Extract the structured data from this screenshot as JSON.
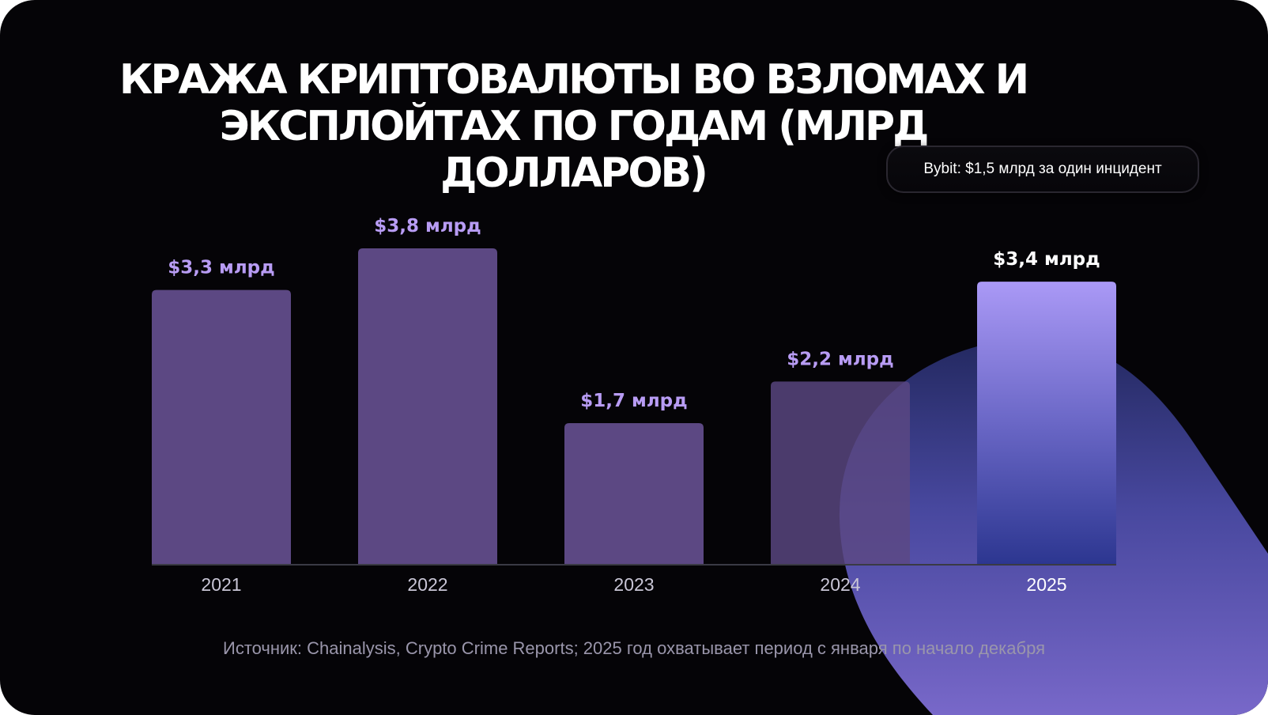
{
  "title": "Кража криптовалюты во взломах и эксплойтах по годам (млрд долларов)",
  "callout": "Bybit: $1,5 млрд за один инцидент",
  "source": "Источник: Chainalysis, Crypto Crime Reports; 2025 год охватывает период с января по начало декабря",
  "colors": {
    "background": "#050407",
    "bar": "#5c4883",
    "bar_highlight_top": "#a896f3",
    "bar_highlight_bottom": "#2f3a92",
    "label": "#b89cf4",
    "label_highlight": "#ffffff",
    "axis_label": "#c9c6d6"
  },
  "chart_data": {
    "type": "bar",
    "title": "Кража криптовалюты во взломах и эксплойтах по годам (млрд долларов)",
    "categories": [
      "2021",
      "2022",
      "2023",
      "2024",
      "2025"
    ],
    "values": [
      3.3,
      3.8,
      1.7,
      2.2,
      3.4
    ],
    "data_labels": [
      "$3,3 млрд",
      "$3,8 млрд",
      "$1,7 млрд",
      "$2,2 млрд",
      "$3,4 млрд"
    ],
    "highlight_index": 4,
    "ylim": [
      0,
      3.8
    ],
    "grid": false,
    "legend": "none",
    "annotation": "Bybit: $1,5 млрд за один инцидент"
  }
}
